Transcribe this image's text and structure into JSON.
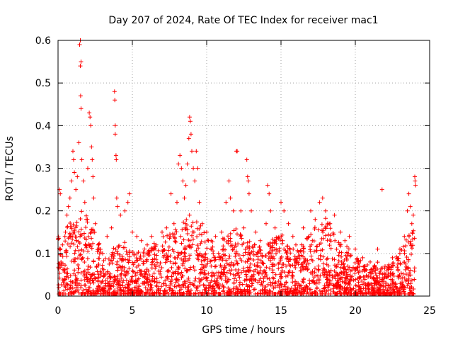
{
  "chart_data": {
    "type": "scatter",
    "title": "Day 207 of 2024, Rate Of TEC Index for receiver mac1",
    "xlabel": "GPS time / hours",
    "ylabel": "ROTI / TECUs",
    "xlim": [
      0,
      25
    ],
    "ylim": [
      0,
      0.6
    ],
    "x_ticks": [
      0,
      5,
      10,
      15,
      20,
      25
    ],
    "x_tick_labels": [
      "0",
      "5",
      "10",
      "15",
      "20",
      "25"
    ],
    "y_ticks": [
      0,
      0.1,
      0.2,
      0.3,
      0.4,
      0.5,
      0.6
    ],
    "y_tick_labels": [
      "0",
      "0.1",
      "0.2",
      "0.3",
      "0.4",
      "0.5",
      "0.6"
    ],
    "grid": true,
    "marker": "+",
    "color": "#ff0000",
    "series": [
      {
        "name": "ROTI",
        "points": [
          [
            0.05,
            0.02
          ],
          [
            0.1,
            0.25
          ],
          [
            0.15,
            0.24
          ],
          [
            0.2,
            0.08
          ],
          [
            0.3,
            0.12
          ],
          [
            0.4,
            0.06
          ],
          [
            0.5,
            0.15
          ],
          [
            0.6,
            0.19
          ],
          [
            0.7,
            0.21
          ],
          [
            0.8,
            0.23
          ],
          [
            0.9,
            0.27
          ],
          [
            1.0,
            0.34
          ],
          [
            1.05,
            0.32
          ],
          [
            1.1,
            0.29
          ],
          [
            1.2,
            0.25
          ],
          [
            1.3,
            0.28
          ],
          [
            1.4,
            0.36
          ],
          [
            1.45,
            0.59
          ],
          [
            1.5,
            0.6
          ],
          [
            1.55,
            0.55
          ],
          [
            1.5,
            0.54
          ],
          [
            1.52,
            0.47
          ],
          [
            1.55,
            0.44
          ],
          [
            1.6,
            0.32
          ],
          [
            1.7,
            0.27
          ],
          [
            1.8,
            0.22
          ],
          [
            1.9,
            0.18
          ],
          [
            2.0,
            0.3
          ],
          [
            2.1,
            0.43
          ],
          [
            2.15,
            0.42
          ],
          [
            2.2,
            0.4
          ],
          [
            2.25,
            0.35
          ],
          [
            2.3,
            0.32
          ],
          [
            2.35,
            0.28
          ],
          [
            2.4,
            0.23
          ],
          [
            2.5,
            0.17
          ],
          [
            2.7,
            0.12
          ],
          [
            3.0,
            0.1
          ],
          [
            3.3,
            0.14
          ],
          [
            3.6,
            0.16
          ],
          [
            3.8,
            0.48
          ],
          [
            3.82,
            0.46
          ],
          [
            3.85,
            0.4
          ],
          [
            3.85,
            0.38
          ],
          [
            3.9,
            0.33
          ],
          [
            3.92,
            0.32
          ],
          [
            3.95,
            0.23
          ],
          [
            4.0,
            0.21
          ],
          [
            4.2,
            0.19
          ],
          [
            4.5,
            0.2
          ],
          [
            4.7,
            0.22
          ],
          [
            4.8,
            0.24
          ],
          [
            5.0,
            0.15
          ],
          [
            5.3,
            0.14
          ],
          [
            5.6,
            0.13
          ],
          [
            6.0,
            0.12
          ],
          [
            6.3,
            0.14
          ],
          [
            6.6,
            0.12
          ],
          [
            7.0,
            0.15
          ],
          [
            7.3,
            0.16
          ],
          [
            7.6,
            0.24
          ],
          [
            7.8,
            0.17
          ],
          [
            8.0,
            0.22
          ],
          [
            8.1,
            0.31
          ],
          [
            8.2,
            0.33
          ],
          [
            8.3,
            0.3
          ],
          [
            8.4,
            0.27
          ],
          [
            8.5,
            0.23
          ],
          [
            8.6,
            0.26
          ],
          [
            8.7,
            0.31
          ],
          [
            8.8,
            0.37
          ],
          [
            8.85,
            0.42
          ],
          [
            8.9,
            0.41
          ],
          [
            8.95,
            0.38
          ],
          [
            9.0,
            0.34
          ],
          [
            9.1,
            0.3
          ],
          [
            9.2,
            0.27
          ],
          [
            9.3,
            0.34
          ],
          [
            9.4,
            0.3
          ],
          [
            9.5,
            0.22
          ],
          [
            9.7,
            0.17
          ],
          [
            10.0,
            0.15
          ],
          [
            10.3,
            0.13
          ],
          [
            10.6,
            0.14
          ],
          [
            11.0,
            0.15
          ],
          [
            11.3,
            0.22
          ],
          [
            11.5,
            0.27
          ],
          [
            11.6,
            0.23
          ],
          [
            11.8,
            0.2
          ],
          [
            12.0,
            0.34
          ],
          [
            12.05,
            0.34
          ],
          [
            12.3,
            0.2
          ],
          [
            12.5,
            0.16
          ],
          [
            12.7,
            0.32
          ],
          [
            12.75,
            0.28
          ],
          [
            12.8,
            0.27
          ],
          [
            12.85,
            0.24
          ],
          [
            13.0,
            0.2
          ],
          [
            13.3,
            0.15
          ],
          [
            13.6,
            0.13
          ],
          [
            14.0,
            0.17
          ],
          [
            14.1,
            0.26
          ],
          [
            14.2,
            0.24
          ],
          [
            14.3,
            0.2
          ],
          [
            14.6,
            0.16
          ],
          [
            15.0,
            0.22
          ],
          [
            15.2,
            0.2
          ],
          [
            15.5,
            0.17
          ],
          [
            15.8,
            0.14
          ],
          [
            16.0,
            0.12
          ],
          [
            16.5,
            0.16
          ],
          [
            17.0,
            0.2
          ],
          [
            17.3,
            0.18
          ],
          [
            17.6,
            0.22
          ],
          [
            17.8,
            0.23
          ],
          [
            18.0,
            0.2
          ],
          [
            18.3,
            0.17
          ],
          [
            18.6,
            0.19
          ],
          [
            19.0,
            0.15
          ],
          [
            19.3,
            0.13
          ],
          [
            19.6,
            0.14
          ],
          [
            20.0,
            0.11
          ],
          [
            20.5,
            0.09
          ],
          [
            21.0,
            0.08
          ],
          [
            21.5,
            0.11
          ],
          [
            21.8,
            0.25
          ],
          [
            22.0,
            0.07
          ],
          [
            22.5,
            0.09
          ],
          [
            23.0,
            0.11
          ],
          [
            23.3,
            0.14
          ],
          [
            23.5,
            0.2
          ],
          [
            23.6,
            0.24
          ],
          [
            23.7,
            0.21
          ],
          [
            23.8,
            0.17
          ],
          [
            23.9,
            0.19
          ],
          [
            24.0,
            0.28
          ],
          [
            24.02,
            0.27
          ],
          [
            24.05,
            0.26
          ]
        ]
      }
    ],
    "dense_band": {
      "description": "dense cloud of points from t=0 to t=24 with values mostly 0 to ~0.12",
      "upper_envelope": [
        [
          0,
          0.12
        ],
        [
          0.5,
          0.14
        ],
        [
          1,
          0.16
        ],
        [
          1.5,
          0.18
        ],
        [
          2,
          0.17
        ],
        [
          2.5,
          0.13
        ],
        [
          3,
          0.09
        ],
        [
          3.5,
          0.08
        ],
        [
          4,
          0.12
        ],
        [
          4.5,
          0.11
        ],
        [
          5,
          0.1
        ],
        [
          5.5,
          0.09
        ],
        [
          6,
          0.1
        ],
        [
          6.5,
          0.11
        ],
        [
          7,
          0.12
        ],
        [
          7.5,
          0.13
        ],
        [
          8,
          0.15
        ],
        [
          8.5,
          0.16
        ],
        [
          9,
          0.17
        ],
        [
          9.5,
          0.15
        ],
        [
          10,
          0.12
        ],
        [
          10.5,
          0.11
        ],
        [
          11,
          0.12
        ],
        [
          11.5,
          0.13
        ],
        [
          12,
          0.14
        ],
        [
          12.5,
          0.12
        ],
        [
          13,
          0.11
        ],
        [
          13.5,
          0.1
        ],
        [
          14,
          0.11
        ],
        [
          14.5,
          0.12
        ],
        [
          15,
          0.13
        ],
        [
          15.5,
          0.11
        ],
        [
          16,
          0.09
        ],
        [
          16.5,
          0.11
        ],
        [
          17,
          0.13
        ],
        [
          17.5,
          0.15
        ],
        [
          18,
          0.16
        ],
        [
          18.5,
          0.14
        ],
        [
          19,
          0.12
        ],
        [
          19.5,
          0.1
        ],
        [
          20,
          0.08
        ],
        [
          20.5,
          0.07
        ],
        [
          21,
          0.06
        ],
        [
          21.5,
          0.07
        ],
        [
          22,
          0.06
        ],
        [
          22.5,
          0.07
        ],
        [
          23,
          0.09
        ],
        [
          23.5,
          0.12
        ],
        [
          24,
          0.14
        ]
      ]
    }
  }
}
